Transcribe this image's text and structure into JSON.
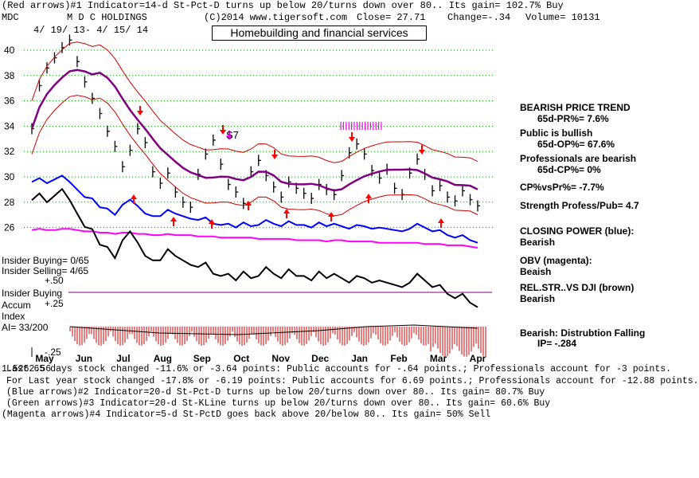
{
  "header": {
    "line1": "(Red arrows)#1 Indicator=14-d St-Pct-D turns up below 20/turns down over 80.. Its gain= 102.7% Buy",
    "symbol": "MDC",
    "company": "M D C HOLDINGS",
    "source": "(C)2014 www.tigersoft.com",
    "close": "Close=  27.71",
    "change": "Change=-.34",
    "volume": "Volume= 10131",
    "date_range": "4/ 19/ 13- 4/ 15/ 14",
    "sector": "Homebuilding and financial services"
  },
  "left_labels": {
    "insider_buying_count": "Insider Buying= 0/65",
    "insider_selling_count": "Insider Selling= 4/65",
    "plus50": "+.50",
    "insider_buying": "Insider Buying",
    "accum": "Accum",
    "plus25": "+.25",
    "index": "Index",
    "ai": "AI= 33/200",
    "minus25": "-.25",
    "overlap": "1.5262.56"
  },
  "chart_annotation": "S7",
  "right_panel": {
    "trend": "BEARISH PRICE TREND",
    "pr": "65d-PR%= 7.6%",
    "public": "Public is bullish",
    "op": "65d-OP%= 67.6%",
    "pros": "Professionals are bearish",
    "cp": "65d-CP%= 0%",
    "cpvspr": "CP%vsPr%= -7.7%",
    "strength": "Strength Profess/Pub= 4.7",
    "closing_power": "CLOSING POWER (blue):",
    "closing_power_v": "Bearish",
    "obv": "OBV (magenta):",
    "obv_v": "Beaish",
    "relstr": "REL.STR..VS DJI (brown)",
    "relstr_v": "Bearish",
    "distribution": "Bearish: Distrubtion Falling",
    "ip": "IP= -.284"
  },
  "footer": {
    "line1": "Last 65 days stock changed -11.6% or -3.64 points:  Public accounts for -.64 points.;  Professionals account for -3 points.",
    "line2": "For Last year stock changed -17.8% or -6.19 points:  Public accounts for  6.69 points.;  Professionals account for -12.88 points.",
    "line3": "(Blue arrows)#2 Indicator=20-d St-Pct-D turns up below 20/turns down over 80.. Its gain= 80.7% Buy",
    "line4": "(Green arrows)#3 Indicator=20-d St-KLine turns up below 20/turns down over 80.. Its gain= 60.6% Buy",
    "line5": "(Magenta arrows)#4 Indicator=5-d St-PctD goes back above 20/below 80.. Its gain= 50% Sell"
  },
  "colors": {
    "price": "#000000",
    "ma": "#800080",
    "band": "#cc0000",
    "closing_power": "#0000ff",
    "obv": "#ff00ff",
    "accum": "#000000",
    "grid": "#00aa00",
    "arrow": "#ff0000",
    "hist": "#cc0000"
  },
  "chart_data": {
    "type": "line",
    "title": "Homebuilding and financial services",
    "x_ticks": [
      "May",
      "Jun",
      "Jul",
      "Aug",
      "Sep",
      "Oct",
      "Nov",
      "Dec",
      "Jan",
      "Feb",
      "Mar",
      "Apr"
    ],
    "y_ticks": [
      26,
      28,
      30,
      32,
      34,
      36,
      38,
      40
    ],
    "ylim": [
      24.6,
      41.5
    ],
    "grid": true,
    "series": [
      {
        "name": "",
        "values": [
          33.8,
          37.2,
          38.6,
          39.4,
          40.2,
          40.8,
          39.1,
          37.5,
          36.2,
          35.0,
          33.6,
          32.4,
          30.8,
          32.1,
          33.8,
          32.7,
          30.4,
          29.5,
          30.3,
          28.8,
          28.0,
          27.6,
          30.2,
          31.8,
          32.9,
          31.0,
          29.4,
          28.8,
          27.9,
          30.4,
          31.3,
          30.1,
          29.2,
          28.4,
          29.6,
          29.1,
          28.7,
          28.3,
          29.4,
          29.0,
          28.6,
          30.1,
          31.9,
          32.6,
          31.8,
          30.5,
          29.9,
          30.6,
          29.1,
          28.6,
          30.3,
          31.4,
          30.2,
          28.9,
          29.3,
          28.4,
          28.1,
          28.9,
          28.2,
          27.71
        ]
      },
      {
        "name": "CLOSING POWER (blue)",
        "values": [
          29.6,
          29.9,
          29.5,
          29.8,
          30.1,
          29.6,
          29.0,
          28.4,
          28.3,
          27.6,
          27.5,
          27.0,
          27.8,
          28.2,
          27.7,
          27.1,
          26.9,
          26.9,
          27.4,
          27.1,
          26.9,
          26.7,
          26.6,
          26.8,
          26.3,
          26.2,
          26.3,
          26.0,
          26.4,
          26.1,
          26.2,
          26.6,
          26.3,
          26.1,
          26.5,
          26.2,
          26.2,
          26.0,
          26.4,
          26.1,
          26.3,
          26.1,
          25.9,
          26.2,
          26.1,
          25.9,
          26.0,
          25.9,
          25.8,
          25.7,
          25.9,
          26.3,
          26.0,
          25.7,
          25.8,
          25.4,
          25.2,
          25.4,
          25.0,
          24.8
        ]
      },
      {
        "name": "OBV (magenta)",
        "values": [
          25.8,
          25.9,
          25.8,
          25.8,
          25.9,
          25.9,
          25.8,
          25.7,
          25.7,
          25.6,
          25.6,
          25.5,
          25.6,
          25.6,
          25.5,
          25.5,
          25.4,
          25.4,
          25.5,
          25.4,
          25.4,
          25.4,
          25.3,
          25.3,
          25.3,
          25.2,
          25.2,
          25.2,
          25.2,
          25.2,
          25.1,
          25.1,
          25.1,
          25.1,
          25.1,
          25.0,
          25.0,
          25.0,
          25.0,
          24.9,
          25.0,
          25.0,
          24.9,
          24.9,
          24.9,
          24.9,
          24.8,
          24.8,
          24.8,
          24.8,
          24.8,
          24.8,
          24.7,
          24.7,
          24.7,
          24.6,
          24.6,
          24.6,
          24.5,
          24.4
        ]
      }
    ]
  }
}
